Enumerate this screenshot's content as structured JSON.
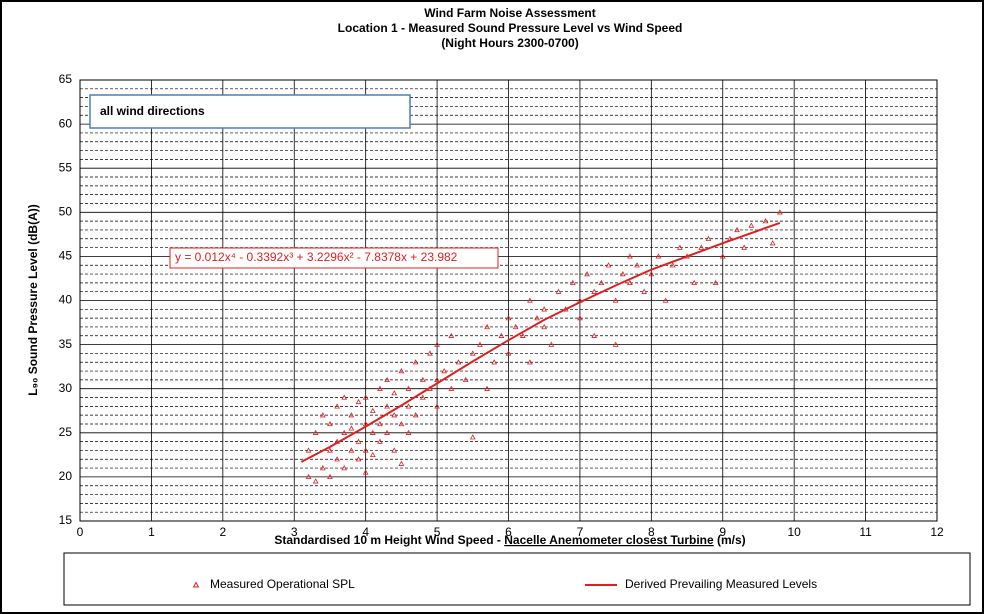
{
  "chart_data": {
    "type": "scatter",
    "title": [
      "Wind Farm Noise Assessment",
      "Location 1 - Measured Sound Pressure Level vs Wind Speed",
      "(Night Hours 2300-0700)"
    ],
    "annotation": "all wind directions",
    "equation": "y = 0.012x⁴ - 0.3392x³ + 3.2296x² - 7.8378x + 23.982",
    "y_label": "L₉₀ Sound Pressure Level (dB(A))",
    "x_label": [
      "Standardised 10 m Height Wind Speed - ",
      "Nacelle Anemometer closest Turbine",
      " (m/s)"
    ],
    "xlim": [
      0,
      12
    ],
    "xticks": [
      0,
      1,
      2,
      3,
      4,
      5,
      6,
      7,
      8,
      9,
      10,
      11,
      12
    ],
    "ylim": [
      15,
      65
    ],
    "yticks": [
      15,
      20,
      25,
      30,
      35,
      40,
      45,
      50,
      55,
      60,
      65
    ],
    "grid": true,
    "series": [
      {
        "name": "Measured Operational SPL",
        "color": "#e02020",
        "marker": "triangle",
        "x": [
          3.2,
          3.2,
          3.3,
          3.3,
          3.4,
          3.4,
          3.5,
          3.5,
          3.5,
          3.6,
          3.6,
          3.6,
          3.7,
          3.7,
          3.7,
          3.8,
          3.8,
          3.8,
          3.9,
          3.9,
          3.9,
          4.0,
          4.0,
          4.0,
          4.0,
          4.1,
          4.1,
          4.1,
          4.2,
          4.2,
          4.2,
          4.3,
          4.3,
          4.3,
          4.4,
          4.4,
          4.4,
          4.5,
          4.5,
          4.5,
          4.6,
          4.6,
          4.6,
          4.7,
          4.7,
          4.8,
          4.8,
          4.9,
          4.9,
          5.0,
          5.0,
          5.0,
          5.1,
          5.2,
          5.2,
          5.3,
          5.4,
          5.5,
          5.5,
          5.6,
          5.7,
          5.7,
          5.8,
          5.9,
          6.0,
          6.0,
          6.1,
          6.2,
          6.3,
          6.3,
          6.4,
          6.5,
          6.5,
          6.6,
          6.7,
          6.8,
          6.9,
          7.0,
          7.0,
          7.1,
          7.2,
          7.2,
          7.3,
          7.4,
          7.5,
          7.5,
          7.6,
          7.7,
          7.7,
          7.8,
          7.9,
          8.0,
          8.1,
          8.2,
          8.3,
          8.4,
          8.5,
          8.6,
          8.7,
          8.8,
          8.9,
          9.0,
          9.1,
          9.2,
          9.3,
          9.4,
          9.6,
          9.7,
          9.8
        ],
        "values": [
          23,
          20,
          19.5,
          25,
          21,
          27,
          23,
          26,
          20,
          24,
          28,
          22,
          25,
          21,
          29,
          23,
          27,
          25.5,
          24,
          28.5,
          22,
          26,
          23,
          29,
          20.5,
          25,
          27.5,
          22.5,
          26,
          30,
          24,
          28,
          25,
          31,
          27,
          23,
          29.5,
          26,
          32,
          21.5,
          28,
          30,
          25,
          33,
          27,
          29,
          31,
          30,
          34,
          31,
          28,
          35,
          32,
          30,
          36,
          33,
          31,
          34,
          24.5,
          35,
          30,
          37,
          33,
          36,
          38,
          34,
          37,
          36,
          40,
          33,
          38,
          37,
          39,
          35,
          41,
          39,
          42,
          38,
          40,
          43,
          41,
          36,
          42,
          44,
          40,
          35,
          43,
          45,
          42,
          44,
          41,
          43,
          45,
          40,
          44,
          46,
          45,
          42,
          46,
          47,
          42,
          45,
          47,
          48,
          46,
          48.5,
          49,
          46.5,
          50
        ]
      },
      {
        "name": "Derived Prevailing Measured Levels",
        "color": "#e02020",
        "marker": "line",
        "x": [
          3.1,
          3.5,
          4,
          4.5,
          5,
          5.5,
          6,
          6.5,
          7,
          7.5,
          8,
          8.5,
          9,
          9.8
        ],
        "values": [
          21.7,
          23.4,
          25.7,
          28.1,
          30.6,
          33.1,
          35.5,
          37.8,
          39.8,
          41.7,
          43.5,
          45.0,
          46.5,
          48.8
        ]
      }
    ]
  }
}
